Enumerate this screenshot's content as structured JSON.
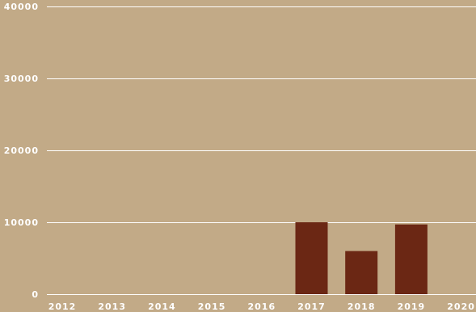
{
  "chart_data": {
    "type": "bar",
    "categories": [
      "2012",
      "2013",
      "2014",
      "2015",
      "2016",
      "2017",
      "2018",
      "2019",
      "2020"
    ],
    "values": [
      0,
      0,
      0,
      0,
      0,
      10000,
      6000,
      9700,
      0
    ],
    "ylim": [
      0,
      40000
    ],
    "yticks": [
      "0",
      "10000",
      "20000",
      "30000",
      "40000"
    ],
    "grid": true,
    "colors": {
      "background": "#c2aa87",
      "bar": "#6b2714",
      "grid": "#ffffff",
      "text": "#ffffff"
    }
  }
}
